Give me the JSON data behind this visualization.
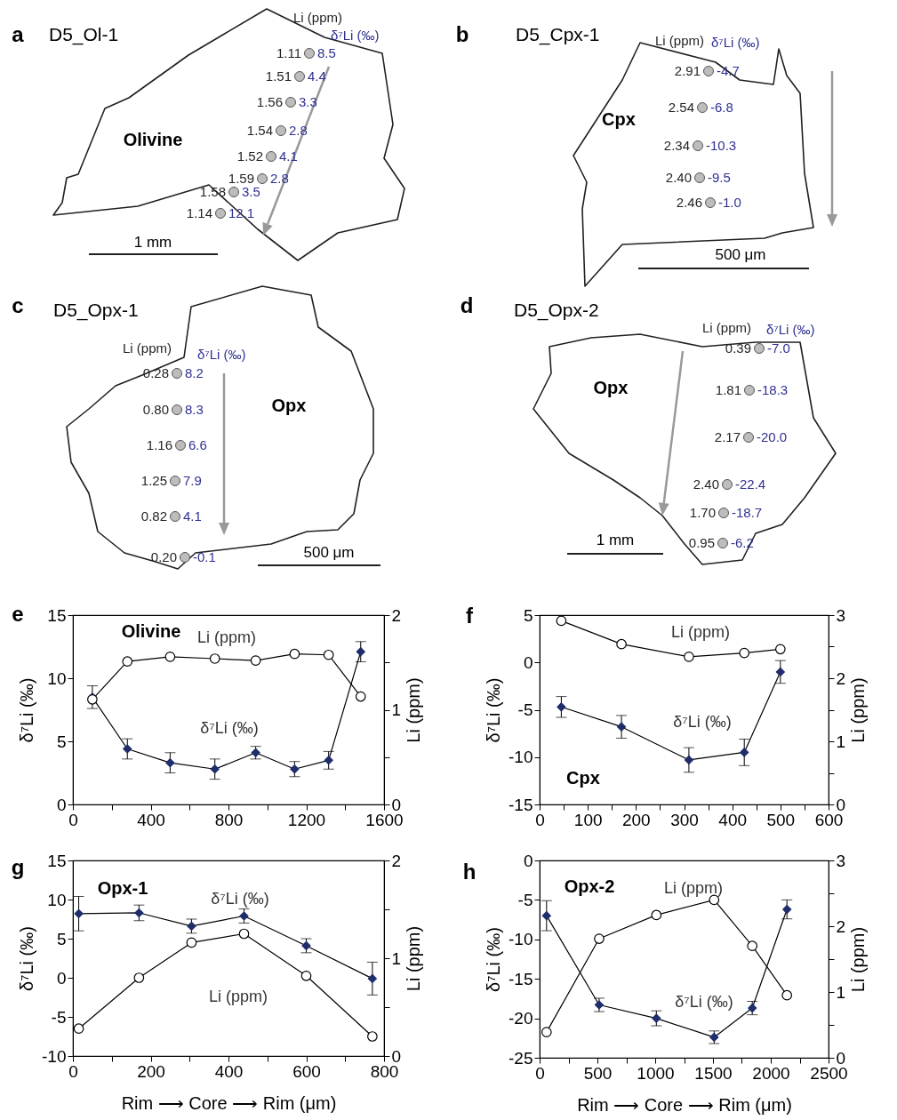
{
  "chart_data": [
    {
      "type": "other",
      "title": "D5_Ol-1",
      "annotations": [
        "a",
        "Olivine",
        "1 mm",
        "Li (ppm)",
        "δ⁷Li (‰)",
        "1.11",
        "8.5",
        "1.51",
        "4.4",
        "1.56",
        "3.3",
        "1.54",
        "2.8",
        "1.52",
        "4.1",
        "1.59",
        "2.8",
        "1.58",
        "3.5",
        "1.14",
        "12.1"
      ]
    },
    {
      "type": "other",
      "title": "D5_Cpx-1",
      "annotations": [
        "b",
        "Cpx",
        "500 μm",
        "Li (ppm)",
        "δ⁷Li (‰)",
        "2.91",
        "-4.7",
        "2.54",
        "-6.8",
        "2.34",
        "-10.3",
        "2.40",
        "-9.5",
        "2.46",
        "-1.0"
      ]
    },
    {
      "type": "other",
      "title": "D5_Opx-1",
      "annotations": [
        "c",
        "Opx",
        "500 μm",
        "Li (ppm)",
        "δ⁷Li (‰)",
        "0.28",
        "8.2",
        "0.80",
        "8.3",
        "1.16",
        "6.6",
        "1.25",
        "7.9",
        "0.82",
        "4.1",
        "0.20",
        "-0.1"
      ]
    },
    {
      "type": "other",
      "title": "D5_Opx-2",
      "annotations": [
        "d",
        "Opx",
        "1 mm",
        "Li (ppm)",
        "δ⁷Li (‰)",
        "0.39",
        "-7.0",
        "1.81",
        "-18.3",
        "2.17",
        "-20.0",
        "2.40",
        "-22.4",
        "1.70",
        "-18.7",
        "0.95",
        "-6.2"
      ]
    },
    {
      "type": "line",
      "annotations": [
        "e",
        "Olivine"
      ],
      "ylabel": "δ⁷Li (‰)",
      "y2label": "Li (ppm)",
      "x": [
        100,
        280,
        500,
        730,
        940,
        1140,
        1315,
        1480
      ],
      "xlim": [
        0,
        1600
      ],
      "xticks": [
        0,
        {
          "value": 200,
          "label": null
        },
        400,
        {
          "value": 600,
          "label": null
        },
        800,
        {
          "value": 1000,
          "label": null
        },
        1200,
        {
          "value": 1400,
          "label": null
        },
        1600
      ],
      "ylim": [
        0,
        15
      ],
      "yticks": [
        0,
        5,
        10,
        15
      ],
      "y2lim": [
        0,
        2
      ],
      "y2ticks": [
        0,
        {
          "value": 0.5,
          "label": null
        },
        1,
        {
          "value": 1.5,
          "label": null
        },
        2
      ],
      "series": [
        {
          "name": "δ⁷Li (‰)",
          "color": "#1f2d6b",
          "marker": "diamond",
          "values": [
            8.5,
            4.4,
            3.3,
            2.8,
            4.1,
            2.8,
            3.5,
            12.1
          ],
          "errors": [
            0.9,
            0.8,
            0.8,
            0.8,
            0.5,
            0.6,
            0.7,
            0.8
          ]
        },
        {
          "name": "Li (ppm)",
          "color": "#ffffff",
          "marker": "circle",
          "axis": "y2",
          "values": [
            1.11,
            1.51,
            1.56,
            1.54,
            1.52,
            1.59,
            1.58,
            1.14
          ]
        }
      ]
    },
    {
      "type": "line",
      "annotations": [
        "f",
        "Cpx"
      ],
      "ylabel": "δ⁷Li (‰)",
      "y2label": "Li (ppm)",
      "x": [
        45,
        170,
        310,
        425,
        500
      ],
      "xlim": [
        0,
        600
      ],
      "xticks": [
        0,
        {
          "value": 50,
          "label": null
        },
        100,
        {
          "value": 150,
          "label": null
        },
        200,
        {
          "value": 250,
          "label": null
        },
        300,
        {
          "value": 350,
          "label": null
        },
        400,
        {
          "value": 450,
          "label": null
        },
        500,
        {
          "value": 550,
          "label": null
        },
        600
      ],
      "ylim": [
        -15,
        5
      ],
      "yticks": [
        -15,
        -10,
        -5,
        0,
        5
      ],
      "y2lim": [
        0,
        3
      ],
      "y2ticks": [
        0,
        {
          "value": 0.5,
          "label": null
        },
        1,
        {
          "value": 1.5,
          "label": null
        },
        2,
        {
          "value": 2.5,
          "label": null
        },
        3
      ],
      "series": [
        {
          "name": "δ⁷Li (‰)",
          "color": "#1f2d6b",
          "marker": "diamond",
          "values": [
            -4.7,
            -6.8,
            -10.3,
            -9.5,
            -1.0
          ],
          "errors": [
            1.1,
            1.2,
            1.3,
            1.4,
            1.2
          ]
        },
        {
          "name": "Li (ppm)",
          "color": "#ffffff",
          "marker": "circle",
          "axis": "y2",
          "values": [
            2.91,
            2.54,
            2.34,
            2.4,
            2.46
          ]
        }
      ]
    },
    {
      "type": "line",
      "annotations": [
        "g",
        "Opx-1"
      ],
      "xlabel": "Rim ⟶ Core ⟶ Rim (μm)",
      "ylabel": "δ⁷Li (‰)",
      "y2label": "Li (ppm)",
      "x": [
        15,
        170,
        305,
        440,
        600,
        770
      ],
      "xlim": [
        0,
        800
      ],
      "xticks": [
        0,
        {
          "value": 100,
          "label": null
        },
        200,
        {
          "value": 300,
          "label": null
        },
        400,
        {
          "value": 500,
          "label": null
        },
        600,
        {
          "value": 700,
          "label": null
        },
        800
      ],
      "ylim": [
        -10,
        15
      ],
      "yticks": [
        -10,
        -5,
        0,
        5,
        10,
        15
      ],
      "y2lim": [
        0,
        2
      ],
      "y2ticks": [
        0,
        {
          "value": 0.5,
          "label": null
        },
        1,
        {
          "value": 1.5,
          "label": null
        },
        2
      ],
      "series": [
        {
          "name": "δ⁷Li (‰)",
          "color": "#1f2d6b",
          "marker": "diamond",
          "values": [
            8.2,
            8.3,
            6.6,
            7.9,
            4.1,
            -0.1
          ],
          "errors": [
            2.2,
            1.0,
            0.9,
            0.9,
            0.9,
            2.1
          ]
        },
        {
          "name": "Li (ppm)",
          "color": "#ffffff",
          "marker": "circle",
          "axis": "y2",
          "values": [
            0.28,
            0.8,
            1.16,
            1.25,
            0.82,
            0.2
          ]
        }
      ]
    },
    {
      "type": "line",
      "annotations": [
        "h",
        "Opx-2"
      ],
      "xlabel": "Rim ⟶ Core ⟶ Rim (μm)",
      "ylabel": "δ⁷Li (‰)",
      "y2label": "Li (ppm)",
      "x": [
        60,
        515,
        1010,
        1510,
        1840,
        2140
      ],
      "xlim": [
        0,
        2500
      ],
      "xticks": [
        0,
        {
          "value": 250,
          "label": null
        },
        500,
        {
          "value": 750,
          "label": null
        },
        1000,
        {
          "value": 1250,
          "label": null
        },
        1500,
        {
          "value": 1750,
          "label": null
        },
        2000,
        {
          "value": 2250,
          "label": null
        },
        2500
      ],
      "ylim": [
        -25,
        0
      ],
      "yticks": [
        -25,
        -20,
        -15,
        -10,
        -5,
        0
      ],
      "y2lim": [
        0,
        3
      ],
      "y2ticks": [
        0,
        {
          "value": 0.5,
          "label": null
        },
        1,
        {
          "value": 1.5,
          "label": null
        },
        2,
        {
          "value": 2.5,
          "label": null
        },
        3
      ],
      "series": [
        {
          "name": "δ⁷Li (‰)",
          "color": "#1f2d6b",
          "marker": "diamond",
          "values": [
            -7.0,
            -18.3,
            -20.0,
            -22.4,
            -18.7,
            -6.2
          ],
          "errors": [
            1.9,
            0.85,
            0.95,
            0.8,
            0.85,
            1.2
          ]
        },
        {
          "name": "Li (ppm)",
          "color": "#ffffff",
          "marker": "circle",
          "axis": "y2",
          "values": [
            0.39,
            1.81,
            2.17,
            2.4,
            1.7,
            0.95
          ]
        }
      ]
    }
  ]
}
